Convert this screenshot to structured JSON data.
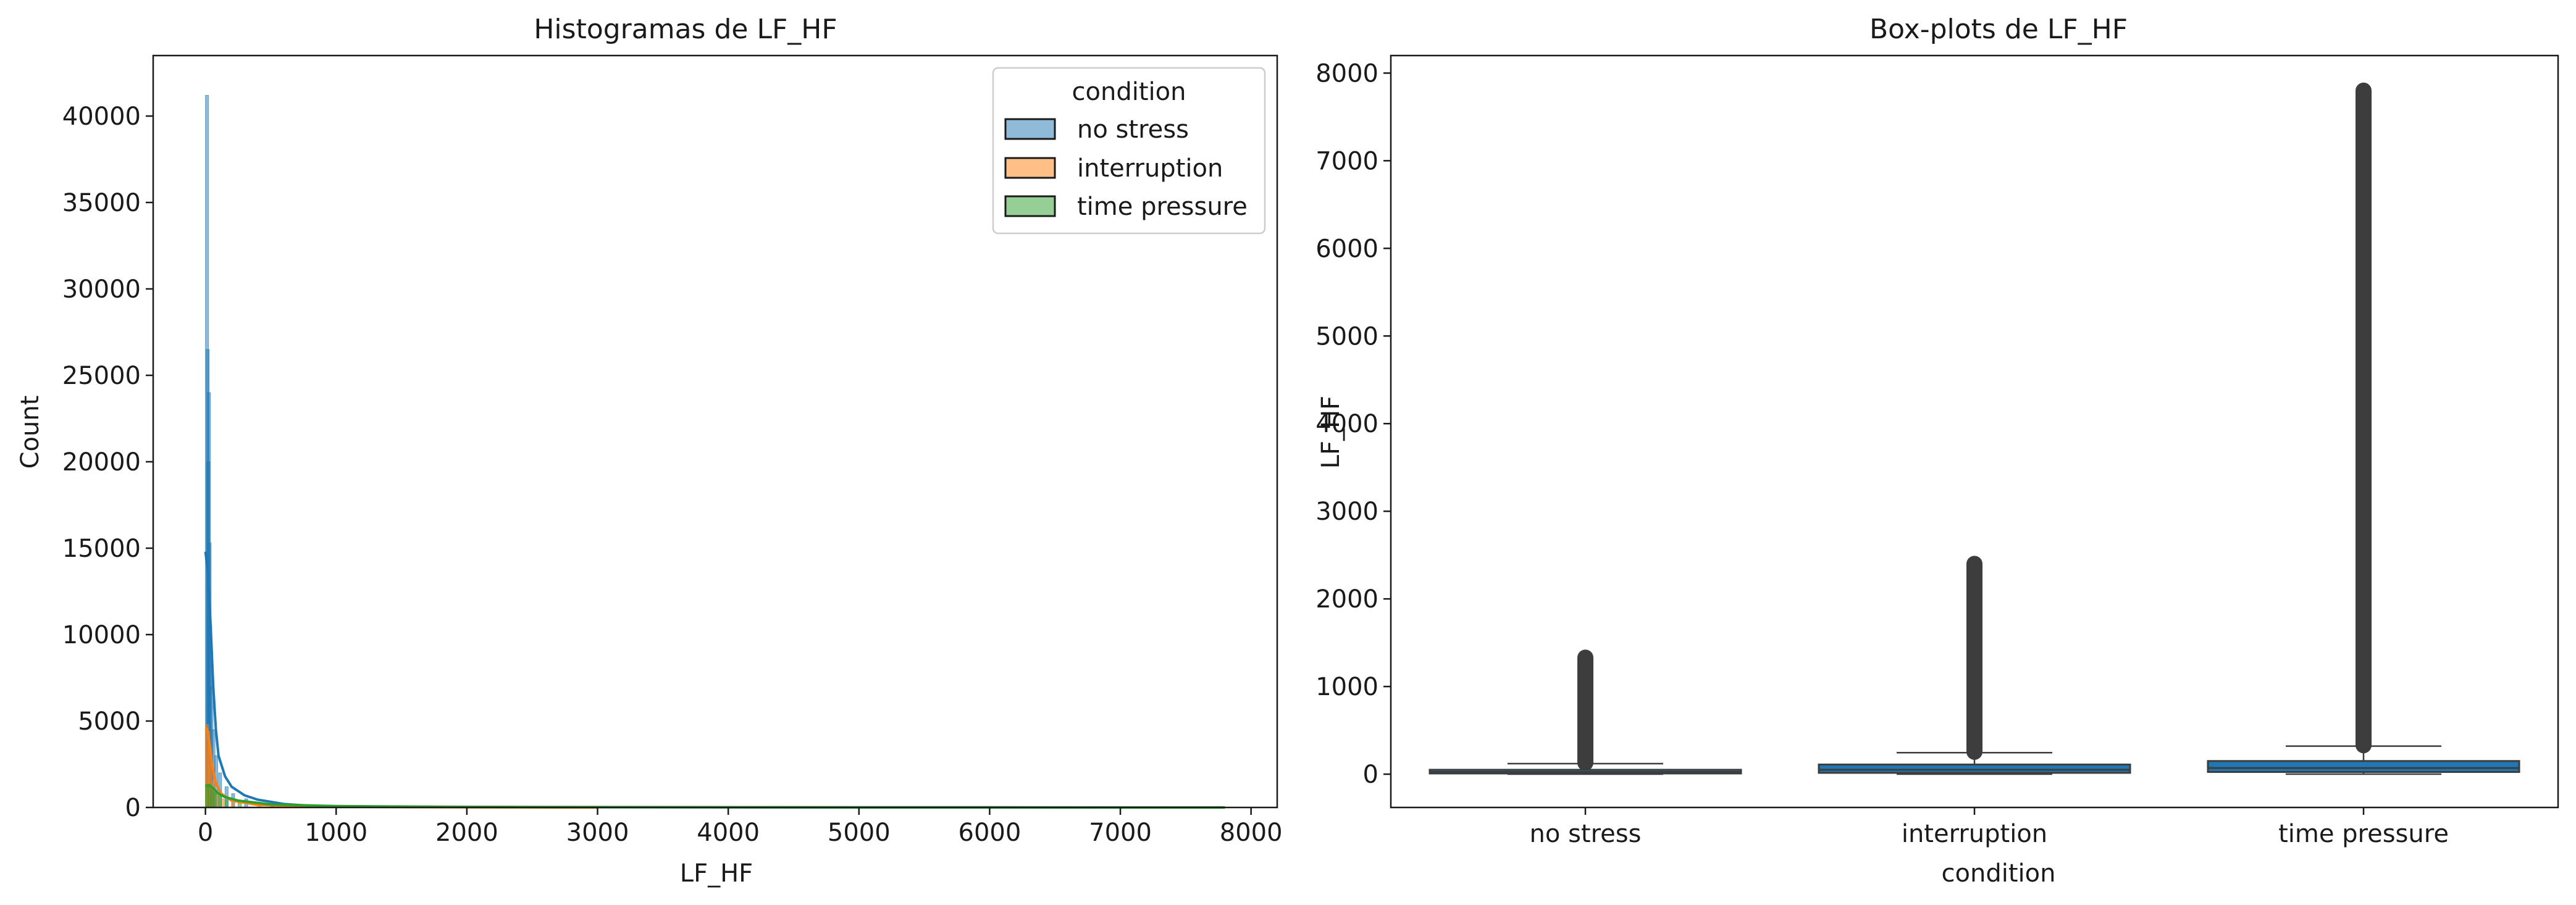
{
  "chart_data": [
    {
      "type": "histogram",
      "title": "Histogramas de LF_HF",
      "xlabel": "LF_HF",
      "ylabel": "Count",
      "xlim": [
        -400,
        8200
      ],
      "ylim": [
        0,
        43500
      ],
      "xticks": [
        "0",
        "1000",
        "2000",
        "3000",
        "4000",
        "5000",
        "6000",
        "7000",
        "8000"
      ],
      "xtick_values": [
        0,
        1000,
        2000,
        3000,
        4000,
        5000,
        6000,
        7000,
        8000
      ],
      "yticks": [
        "0",
        "5000",
        "10000",
        "15000",
        "20000",
        "25000",
        "30000",
        "35000",
        "40000"
      ],
      "ytick_values": [
        0,
        5000,
        10000,
        15000,
        20000,
        25000,
        30000,
        35000,
        40000
      ],
      "legend": {
        "title": "condition",
        "placement": "top-right",
        "entries": [
          "no stress",
          "interruption",
          "time pressure"
        ]
      },
      "series": [
        {
          "name": "no stress",
          "color": "#1f77b4",
          "bars": [
            [
              0,
              41200
            ],
            [
              5,
              26500
            ],
            [
              10,
              20000
            ],
            [
              15,
              24000
            ],
            [
              20,
              15300
            ],
            [
              25,
              10500
            ],
            [
              35,
              7000
            ],
            [
              50,
              4500
            ],
            [
              70,
              3000
            ],
            [
              100,
              2000
            ],
            [
              150,
              1200
            ],
            [
              200,
              800
            ],
            [
              300,
              500
            ],
            [
              500,
              200
            ],
            [
              800,
              80
            ],
            [
              1200,
              40
            ]
          ],
          "kde": [
            [
              0,
              14800
            ],
            [
              20,
              13500
            ],
            [
              40,
              10500
            ],
            [
              60,
              7000
            ],
            [
              80,
              4500
            ],
            [
              100,
              3000
            ],
            [
              150,
              1800
            ],
            [
              200,
              1200
            ],
            [
              300,
              700
            ],
            [
              400,
              450
            ],
            [
              600,
              200
            ],
            [
              800,
              100
            ],
            [
              1200,
              40
            ],
            [
              2000,
              20
            ],
            [
              4000,
              8
            ],
            [
              7800,
              0
            ]
          ]
        },
        {
          "name": "interruption",
          "color": "#ff7f0e",
          "bars": [
            [
              0,
              4800
            ],
            [
              10,
              4400
            ],
            [
              20,
              3500
            ],
            [
              30,
              2500
            ],
            [
              50,
              1500
            ],
            [
              80,
              900
            ],
            [
              120,
              500
            ],
            [
              200,
              250
            ],
            [
              400,
              100
            ],
            [
              800,
              40
            ],
            [
              1500,
              20
            ],
            [
              2400,
              10
            ]
          ],
          "kde": [
            [
              0,
              4600
            ],
            [
              15,
              4500
            ],
            [
              30,
              3800
            ],
            [
              50,
              2500
            ],
            [
              80,
              1400
            ],
            [
              120,
              800
            ],
            [
              200,
              400
            ],
            [
              400,
              150
            ],
            [
              800,
              60
            ],
            [
              1500,
              20
            ],
            [
              2400,
              5
            ],
            [
              3000,
              0
            ]
          ]
        },
        {
          "name": "time pressure",
          "color": "#2ca02c",
          "bars": [
            [
              0,
              1300
            ],
            [
              20,
              1200
            ],
            [
              40,
              1000
            ],
            [
              60,
              850
            ],
            [
              100,
              650
            ],
            [
              150,
              450
            ],
            [
              250,
              250
            ],
            [
              500,
              120
            ],
            [
              1000,
              60
            ],
            [
              2000,
              30
            ],
            [
              4000,
              15
            ],
            [
              7800,
              5
            ]
          ],
          "kde": [
            [
              0,
              1250
            ],
            [
              30,
              1300
            ],
            [
              60,
              1100
            ],
            [
              100,
              800
            ],
            [
              150,
              600
            ],
            [
              250,
              400
            ],
            [
              500,
              180
            ],
            [
              1000,
              80
            ],
            [
              2000,
              35
            ],
            [
              4000,
              15
            ],
            [
              6000,
              8
            ],
            [
              7800,
              0
            ]
          ]
        }
      ]
    },
    {
      "type": "box",
      "title": "Box-plots de LF_HF",
      "xlabel": "condition",
      "ylabel": "LF_HF",
      "ylim": [
        -380,
        8200
      ],
      "categories": [
        "no stress",
        "interruption",
        "time pressure"
      ],
      "yticks": [
        "0",
        "1000",
        "2000",
        "3000",
        "4000",
        "5000",
        "6000",
        "7000",
        "8000"
      ],
      "ytick_values": [
        0,
        1000,
        2000,
        3000,
        4000,
        5000,
        6000,
        7000,
        8000
      ],
      "box_color": "#1f77b4",
      "boxes": [
        {
          "category": "no stress",
          "whisker_low": 0,
          "q1": 8,
          "median": 25,
          "q3": 50,
          "whisker_high": 120,
          "outlier_range": [
            130,
            1330
          ]
        },
        {
          "category": "interruption",
          "whisker_low": 0,
          "q1": 15,
          "median": 50,
          "q3": 110,
          "whisker_high": 245,
          "outlier_range": [
            255,
            2400
          ]
        },
        {
          "category": "time pressure",
          "whisker_low": 0,
          "q1": 25,
          "median": 70,
          "q3": 150,
          "whisker_high": 320,
          "outlier_range": [
            330,
            7800
          ]
        }
      ]
    }
  ]
}
